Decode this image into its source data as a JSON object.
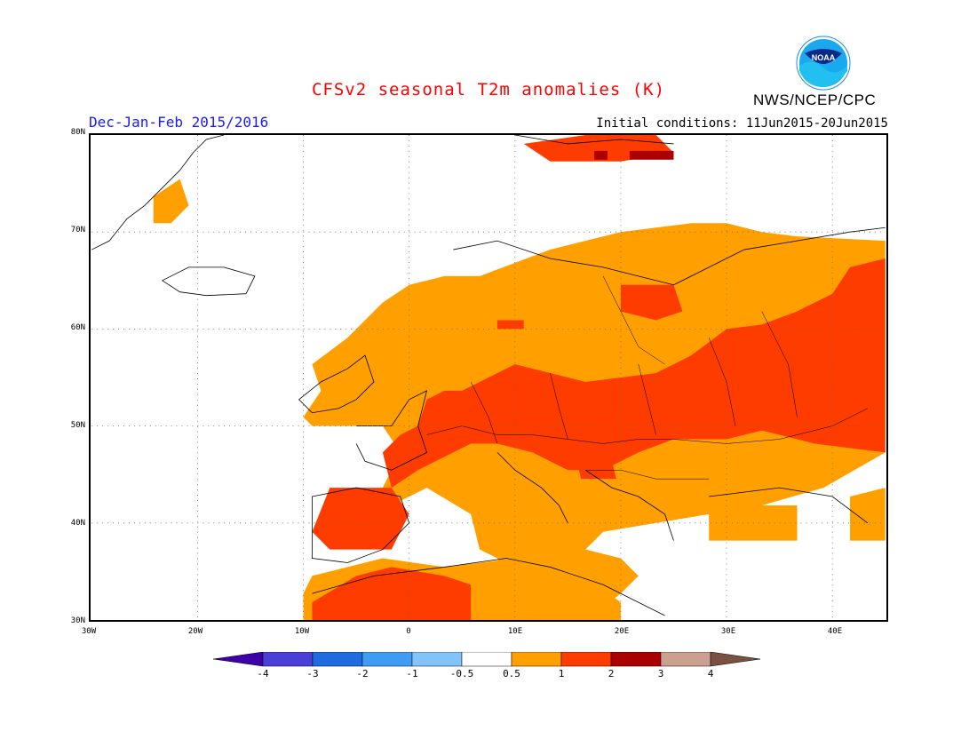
{
  "header": {
    "title": "CFSv2 seasonal T2m anomalies (K)",
    "period": "Dec-Jan-Feb 2015/2016",
    "initial_conditions": "Initial conditions: 11Jun2015-20Jun2015",
    "agency": "NWS/NCEP/CPC",
    "logo_text": "NOAA"
  },
  "map": {
    "lat_labels": [
      "80N",
      "70N",
      "60N",
      "50N",
      "40N",
      "30N"
    ],
    "lon_labels": [
      "30W",
      "20W",
      "10W",
      "0",
      "10E",
      "20E",
      "30E",
      "40E"
    ],
    "lon_range": [
      -30,
      45
    ],
    "lat_range": [
      30,
      80
    ],
    "grid": "dotted",
    "colors": {
      "warm1": "#ffa000",
      "warm2": "#ff3c00",
      "warm3": "#aa0000"
    }
  },
  "colorbar": {
    "labels": [
      "-4",
      "-3",
      "-2",
      "-1",
      "-0.5",
      "0.5",
      "1",
      "2",
      "3",
      "4"
    ],
    "colors": [
      "#3d00a8",
      "#4a3fd6",
      "#1e6ce0",
      "#3e9cf2",
      "#82c4fa",
      "#ffffff",
      "#ffa000",
      "#ff3c00",
      "#aa0000",
      "#caa090",
      "#7a5040"
    ]
  }
}
